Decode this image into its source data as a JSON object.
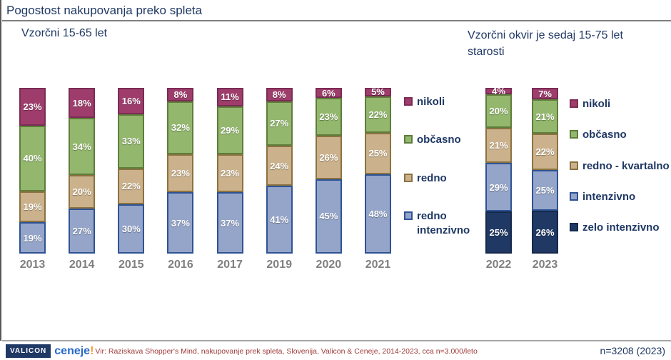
{
  "title": "Pogostost nakupovanja preko spleta",
  "subtitle_left": "Vzorčni 15-65 let",
  "subtitle_right": "Vzorčni okvir je sedaj 15-75 let starosti",
  "colors": {
    "title_blue": "#1F3864",
    "year_label_gray": "#7F7F7F",
    "nikoli_fill": "#9E3D6B",
    "nikoli_border": "#7B2C55",
    "obcasno_fill": "#94B76E",
    "obcasno_border": "#5F7D3B",
    "redno_fill": "#CBB28C",
    "redno_border": "#8B7240",
    "intenzivno_fill": "#95A5C9",
    "intenzivno_border": "#2E5395",
    "zelo_intenzivno_fill": "#1F3864",
    "zelo_intenzivno_border": "#16294A"
  },
  "chart_data": [
    {
      "type": "bar",
      "stacked": true,
      "title": "Vzorčni 15-65 let",
      "categories": [
        "2013",
        "2014",
        "2015",
        "2016",
        "2017",
        "2019",
        "2020",
        "2021"
      ],
      "series": [
        {
          "name": "nikoli",
          "fill": "#9E3D6B",
          "border": "#7B2C55",
          "values": [
            23,
            18,
            16,
            8,
            11,
            8,
            6,
            5
          ]
        },
        {
          "name": "občasno",
          "fill": "#94B76E",
          "border": "#5F7D3B",
          "values": [
            40,
            34,
            33,
            32,
            29,
            27,
            23,
            22
          ]
        },
        {
          "name": "redno",
          "fill": "#CBB28C",
          "border": "#8B7240",
          "values": [
            19,
            20,
            22,
            23,
            23,
            24,
            26,
            25
          ]
        },
        {
          "name": "redno intenzivno",
          "fill": "#95A5C9",
          "border": "#2E5395",
          "values": [
            19,
            27,
            30,
            37,
            37,
            41,
            45,
            48
          ]
        }
      ],
      "value_suffix": "%",
      "legend_position": "right",
      "ylim": [
        0,
        100
      ]
    },
    {
      "type": "bar",
      "stacked": true,
      "title": "Vzorčni okvir je sedaj 15-75 let starosti",
      "categories": [
        "2022",
        "2023"
      ],
      "series": [
        {
          "name": "nikoli",
          "fill": "#9E3D6B",
          "border": "#7B2C55",
          "values": [
            4,
            7
          ]
        },
        {
          "name": "občasno",
          "fill": "#94B76E",
          "border": "#5F7D3B",
          "values": [
            20,
            21
          ]
        },
        {
          "name": "redno - kvartalno",
          "fill": "#CBB28C",
          "border": "#8B7240",
          "values": [
            21,
            22
          ]
        },
        {
          "name": "intenzivno",
          "fill": "#95A5C9",
          "border": "#2E5395",
          "values": [
            29,
            25
          ]
        },
        {
          "name": "zelo intenzivno",
          "fill": "#1F3864",
          "border": "#16294A",
          "values": [
            25,
            26
          ]
        }
      ],
      "value_suffix": "%",
      "legend_position": "right",
      "ylim": [
        0,
        100
      ]
    }
  ],
  "footer": {
    "valicon_label": "VALICON",
    "ceneje_label": "ceneje",
    "ceneje_bang": "!",
    "source": "Vir: Raziskava Shopper's Mind, nakupovanje prek spleta, Slovenija, Valicon & Ceneje, 2014-2023, cca n=3.000/leto",
    "sample_size": "n=3208 (2023)"
  }
}
